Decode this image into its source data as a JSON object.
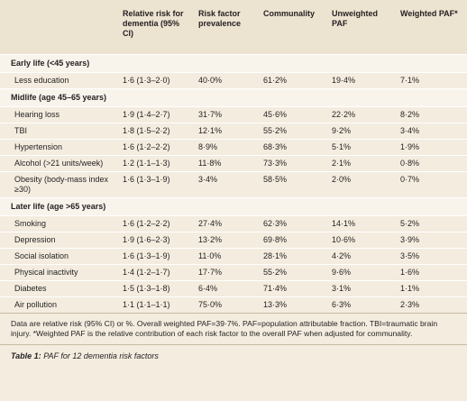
{
  "table": {
    "header": [
      "Relative risk for dementia (95% CI)",
      "Risk factor prevalence",
      "Communality",
      "Unweighted PAF",
      "Weighted PAF*"
    ],
    "sections": [
      {
        "title": "Early life (<45 years)",
        "rows": [
          [
            "Less education",
            "1·6 (1·3–2·0)",
            "40·0%",
            "61·2%",
            "19·4%",
            "7·1%"
          ]
        ]
      },
      {
        "title": "Midlife (age 45–65 years)",
        "rows": [
          [
            "Hearing loss",
            "1·9 (1·4–2·7)",
            "31·7%",
            "45·6%",
            "22·2%",
            "8·2%"
          ],
          [
            "TBI",
            "1·8 (1·5–2·2)",
            "12·1%",
            "55·2%",
            "9·2%",
            "3·4%"
          ],
          [
            "Hypertension",
            "1·6 (1·2–2·2)",
            "8·9%",
            "68·3%",
            "5·1%",
            "1·9%"
          ],
          [
            "Alcohol (>21 units/week)",
            "1·2 (1·1–1·3)",
            "11·8%",
            "73·3%",
            "2·1%",
            "0·8%"
          ],
          [
            "Obesity (body-mass index ≥30)",
            "1·6 (1·3–1·9)",
            "3·4%",
            "58·5%",
            "2·0%",
            "0·7%"
          ]
        ]
      },
      {
        "title": "Later life (age >65 years)",
        "rows": [
          [
            "Smoking",
            "1·6 (1·2–2·2)",
            "27·4%",
            "62·3%",
            "14·1%",
            "5·2%"
          ],
          [
            "Depression",
            "1·9 (1·6–2·3)",
            "13·2%",
            "69·8%",
            "10·6%",
            "3·9%"
          ],
          [
            "Social isolation",
            "1·6 (1·3–1·9)",
            "11·0%",
            "28·1%",
            "4·2%",
            "3·5%"
          ],
          [
            "Physical inactivity",
            "1·4 (1·2–1·7)",
            "17·7%",
            "55·2%",
            "9·6%",
            "1·6%"
          ],
          [
            "Diabetes",
            "1·5 (1·3–1·8)",
            "6·4%",
            "71·4%",
            "3·1%",
            "1·1%"
          ],
          [
            "Air pollution",
            "1·1 (1·1–1·1)",
            "75·0%",
            "13·3%",
            "6·3%",
            "2·3%"
          ]
        ]
      }
    ]
  },
  "footnote": "Data are relative risk (95% CI) or %. Overall weighted PAF=39·7%. PAF=population attributable fraction. TBI=traumatic brain injury. *Weighted PAF is the relative contribution of each risk factor to the overall PAF when adjusted for communality.",
  "caption": {
    "label": "Table 1:",
    "text": "PAF for 12 dementia risk factors"
  }
}
